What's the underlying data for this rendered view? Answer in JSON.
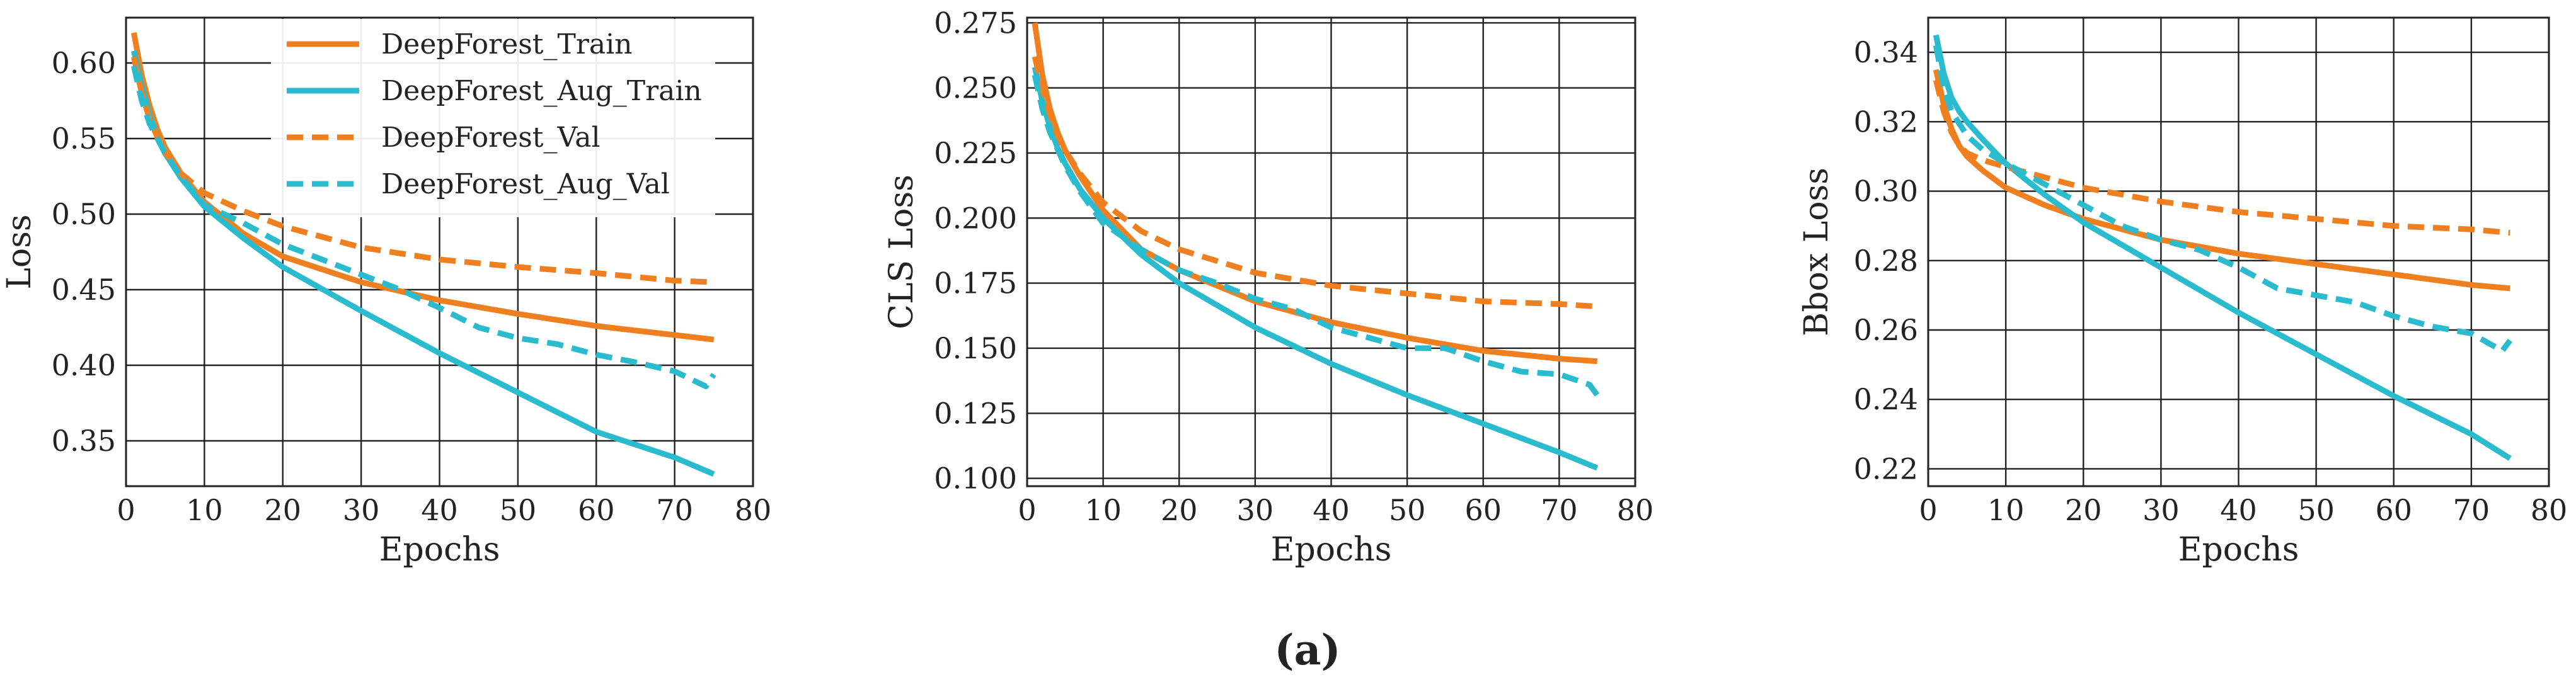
{
  "caption": "(a)",
  "colors": {
    "train": "#F07F1F",
    "aug": "#2BBBCF",
    "axis": "#222222"
  },
  "chart_data": [
    {
      "type": "line",
      "xlabel": "Epochs",
      "ylabel": "Loss",
      "xlim": [
        0,
        80
      ],
      "ylim": [
        0.32,
        0.63
      ],
      "xticks": [
        0,
        10,
        20,
        30,
        40,
        50,
        60,
        70,
        80
      ],
      "xtick_labels": [
        "0",
        "10",
        "20",
        "30",
        "40",
        "50",
        "60",
        "70",
        "80"
      ],
      "yticks": [
        0.35,
        0.4,
        0.45,
        0.5,
        0.55,
        0.6
      ],
      "ytick_labels": [
        "0.35",
        "0.40",
        "0.45",
        "0.50",
        "0.55",
        "0.60"
      ],
      "grid": true,
      "legend_position": "top-right",
      "series": [
        {
          "name": "DeepForest_Train",
          "style": "solid",
          "color": "#F07F1F",
          "x": [
            1,
            2,
            3,
            4,
            5,
            7,
            10,
            15,
            20,
            30,
            40,
            50,
            60,
            70,
            75
          ],
          "y": [
            0.62,
            0.592,
            0.572,
            0.556,
            0.544,
            0.527,
            0.508,
            0.487,
            0.472,
            0.455,
            0.443,
            0.434,
            0.426,
            0.42,
            0.417
          ]
        },
        {
          "name": "DeepForest_Aug_Train",
          "style": "solid",
          "color": "#2BBBCF",
          "x": [
            1,
            2,
            3,
            4,
            5,
            7,
            10,
            15,
            20,
            30,
            40,
            50,
            60,
            70,
            75
          ],
          "y": [
            0.608,
            0.585,
            0.566,
            0.551,
            0.54,
            0.524,
            0.505,
            0.484,
            0.465,
            0.436,
            0.408,
            0.382,
            0.356,
            0.339,
            0.328
          ]
        },
        {
          "name": "DeepForest_Val",
          "style": "dashed",
          "color": "#F07F1F",
          "x": [
            1,
            2,
            3,
            4,
            5,
            7,
            10,
            15,
            20,
            30,
            40,
            50,
            60,
            70,
            75
          ],
          "y": [
            0.604,
            0.58,
            0.563,
            0.551,
            0.541,
            0.527,
            0.514,
            0.502,
            0.492,
            0.478,
            0.47,
            0.465,
            0.461,
            0.456,
            0.455
          ]
        },
        {
          "name": "DeepForest_Aug_Val",
          "style": "dashed",
          "color": "#2BBBCF",
          "x": [
            1,
            2,
            3,
            5,
            7,
            10,
            15,
            20,
            25,
            30,
            35,
            40,
            45,
            50,
            55,
            60,
            65,
            70,
            74,
            75
          ],
          "y": [
            0.598,
            0.575,
            0.56,
            0.54,
            0.525,
            0.506,
            0.494,
            0.48,
            0.47,
            0.46,
            0.45,
            0.438,
            0.425,
            0.418,
            0.414,
            0.407,
            0.402,
            0.396,
            0.386,
            0.394
          ]
        }
      ]
    },
    {
      "type": "line",
      "xlabel": "Epochs",
      "ylabel": "CLS Loss",
      "xlim": [
        0,
        80
      ],
      "ylim": [
        0.097,
        0.277
      ],
      "xticks": [
        0,
        10,
        20,
        30,
        40,
        50,
        60,
        70,
        80
      ],
      "xtick_labels": [
        "0",
        "10",
        "20",
        "30",
        "40",
        "50",
        "60",
        "70",
        "80"
      ],
      "yticks": [
        0.1,
        0.125,
        0.15,
        0.175,
        0.2,
        0.225,
        0.25,
        0.275
      ],
      "ytick_labels": [
        "0.100",
        "0.125",
        "0.150",
        "0.175",
        "0.200",
        "0.225",
        "0.250",
        "0.275"
      ],
      "grid": true,
      "series": [
        {
          "name": "DeepForest_Train",
          "style": "solid",
          "color": "#F07F1F",
          "x": [
            1,
            2,
            3,
            4,
            5,
            7,
            10,
            15,
            20,
            30,
            40,
            50,
            60,
            70,
            75
          ],
          "y": [
            0.275,
            0.255,
            0.242,
            0.233,
            0.226,
            0.216,
            0.203,
            0.188,
            0.18,
            0.168,
            0.16,
            0.154,
            0.149,
            0.146,
            0.145
          ]
        },
        {
          "name": "DeepForest_Aug_Train",
          "style": "solid",
          "color": "#2BBBCF",
          "x": [
            1,
            2,
            3,
            4,
            5,
            7,
            10,
            15,
            20,
            30,
            40,
            50,
            60,
            70,
            75
          ],
          "y": [
            0.258,
            0.245,
            0.235,
            0.227,
            0.221,
            0.211,
            0.2,
            0.186,
            0.175,
            0.158,
            0.144,
            0.132,
            0.121,
            0.11,
            0.104
          ]
        },
        {
          "name": "DeepForest_Val",
          "style": "dashed",
          "color": "#F07F1F",
          "x": [
            1,
            2,
            3,
            4,
            5,
            7,
            10,
            15,
            20,
            30,
            40,
            50,
            60,
            70,
            75
          ],
          "y": [
            0.262,
            0.25,
            0.24,
            0.232,
            0.226,
            0.217,
            0.206,
            0.195,
            0.188,
            0.179,
            0.174,
            0.171,
            0.168,
            0.167,
            0.166
          ]
        },
        {
          "name": "DeepForest_Aug_Val",
          "style": "dashed",
          "color": "#2BBBCF",
          "x": [
            1,
            2,
            3,
            5,
            7,
            10,
            15,
            20,
            25,
            30,
            35,
            40,
            45,
            50,
            55,
            60,
            65,
            70,
            74,
            75
          ],
          "y": [
            0.255,
            0.242,
            0.233,
            0.22,
            0.21,
            0.198,
            0.188,
            0.18,
            0.175,
            0.169,
            0.165,
            0.158,
            0.154,
            0.15,
            0.15,
            0.145,
            0.141,
            0.14,
            0.136,
            0.132
          ]
        }
      ]
    },
    {
      "type": "line",
      "xlabel": "Epochs",
      "ylabel": "Bbox Loss",
      "xlim": [
        0,
        80
      ],
      "ylim": [
        0.215,
        0.35
      ],
      "xticks": [
        0,
        10,
        20,
        30,
        40,
        50,
        60,
        70,
        80
      ],
      "xtick_labels": [
        "0",
        "10",
        "20",
        "30",
        "40",
        "50",
        "60",
        "70",
        "80"
      ],
      "yticks": [
        0.22,
        0.24,
        0.26,
        0.28,
        0.3,
        0.32,
        0.34
      ],
      "ytick_labels": [
        "0.22",
        "0.24",
        "0.26",
        "0.28",
        "0.30",
        "0.32",
        "0.34"
      ],
      "grid": true,
      "series": [
        {
          "name": "DeepForest_Train",
          "style": "solid",
          "color": "#F07F1F",
          "x": [
            1,
            2,
            3,
            4,
            5,
            7,
            10,
            15,
            20,
            30,
            40,
            50,
            60,
            70,
            75
          ],
          "y": [
            0.335,
            0.325,
            0.318,
            0.313,
            0.31,
            0.306,
            0.301,
            0.296,
            0.292,
            0.286,
            0.282,
            0.279,
            0.276,
            0.273,
            0.272
          ]
        },
        {
          "name": "DeepForest_Aug_Train",
          "style": "solid",
          "color": "#2BBBCF",
          "x": [
            1,
            2,
            3,
            4,
            5,
            7,
            10,
            15,
            20,
            30,
            40,
            50,
            60,
            70,
            75
          ],
          "y": [
            0.345,
            0.334,
            0.327,
            0.323,
            0.32,
            0.315,
            0.308,
            0.299,
            0.291,
            0.278,
            0.265,
            0.253,
            0.241,
            0.23,
            0.223
          ]
        },
        {
          "name": "DeepForest_Val",
          "style": "dashed",
          "color": "#F07F1F",
          "x": [
            1,
            2,
            3,
            4,
            5,
            7,
            10,
            15,
            20,
            30,
            40,
            50,
            60,
            70,
            75
          ],
          "y": [
            0.332,
            0.323,
            0.317,
            0.313,
            0.311,
            0.309,
            0.307,
            0.304,
            0.301,
            0.297,
            0.294,
            0.292,
            0.29,
            0.289,
            0.288
          ]
        },
        {
          "name": "DeepForest_Aug_Val",
          "style": "dashed",
          "color": "#2BBBCF",
          "x": [
            1,
            2,
            3,
            5,
            7,
            10,
            15,
            20,
            25,
            30,
            35,
            40,
            45,
            50,
            55,
            60,
            65,
            70,
            74,
            75
          ],
          "y": [
            0.342,
            0.33,
            0.323,
            0.316,
            0.312,
            0.308,
            0.302,
            0.296,
            0.29,
            0.286,
            0.283,
            0.278,
            0.272,
            0.27,
            0.268,
            0.264,
            0.261,
            0.259,
            0.254,
            0.257
          ]
        }
      ]
    }
  ]
}
